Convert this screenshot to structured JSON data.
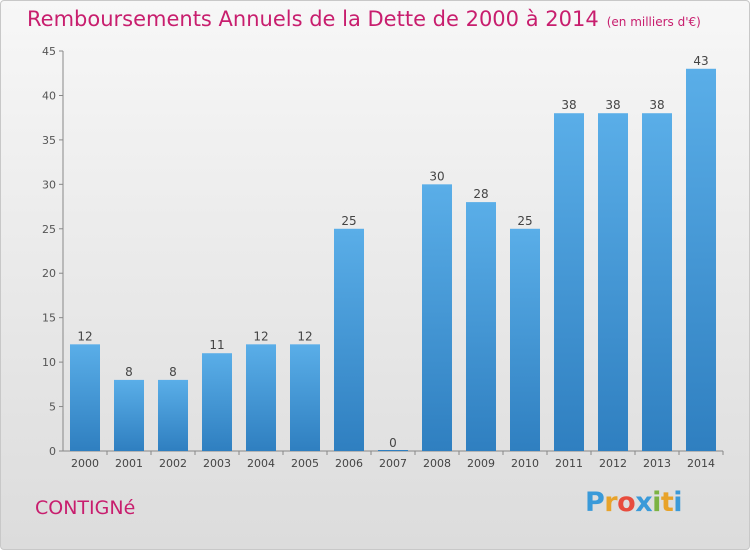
{
  "chart_data": {
    "type": "bar",
    "title": "Remboursements Annuels de la Dette de 2000 à 2014",
    "subtitle": "(en milliers d'€)",
    "categories": [
      "2000",
      "2001",
      "2002",
      "2003",
      "2004",
      "2005",
      "2006",
      "2007",
      "2008",
      "2009",
      "2010",
      "2011",
      "2012",
      "2013",
      "2014"
    ],
    "values": [
      12,
      8,
      8,
      11,
      12,
      12,
      25,
      0,
      30,
      28,
      25,
      38,
      38,
      38,
      43
    ],
    "xlabel": "",
    "ylabel": "",
    "ylim": [
      0,
      45
    ],
    "yticks": [
      0,
      5,
      10,
      15,
      20,
      25,
      30,
      35,
      40,
      45
    ],
    "grid": false,
    "bar_color_top": "#5aaee8",
    "bar_color_bottom": "#2f7fc0"
  },
  "commune": "CONTIGNé",
  "logo": {
    "letters": [
      "P",
      "r",
      "o",
      "x",
      "i",
      "t",
      "i"
    ],
    "colors": [
      "#3a9ad9",
      "#e8a32a",
      "#e84c3d",
      "#3a9ad9",
      "#7cb342",
      "#e8a32a",
      "#3a9ad9"
    ]
  }
}
